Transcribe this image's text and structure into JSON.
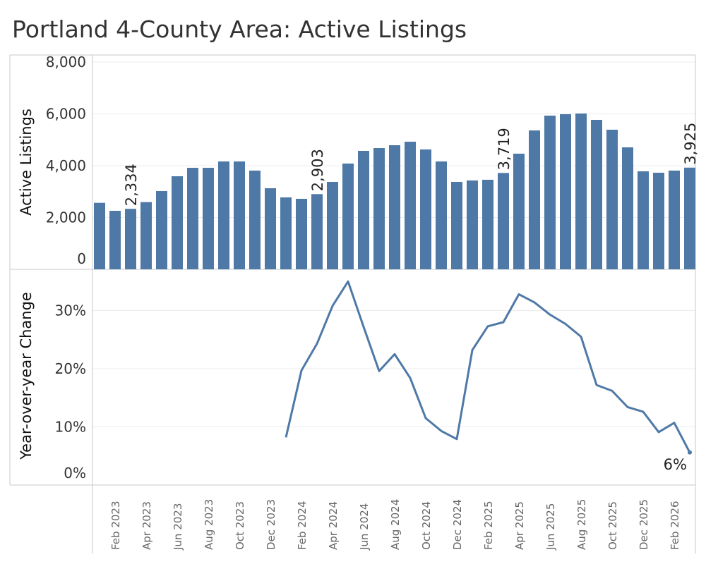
{
  "title": "Portland 4-County Area: Active Listings",
  "colors": {
    "bar": "#4e79a7",
    "line": "#4e79a7",
    "grid": "#ececec",
    "axis": "#c8c8c8"
  },
  "chart_data": [
    {
      "type": "bar",
      "title": "Active Listings",
      "ylabel": "Active Listings",
      "ylim": [
        0,
        8000
      ],
      "yticks": [
        0,
        2000,
        4000,
        6000,
        8000
      ],
      "ytick_labels": [
        "0",
        "2,000",
        "4,000",
        "6,000",
        "8,000"
      ],
      "grid": true,
      "categories": [
        "Jan 2023",
        "Feb 2023",
        "Mar 2023",
        "Apr 2023",
        "May 2023",
        "Jun 2023",
        "Jul 2023",
        "Aug 2023",
        "Sep 2023",
        "Oct 2023",
        "Nov 2023",
        "Dec 2023",
        "Jan 2024",
        "Feb 2024",
        "Mar 2024",
        "Apr 2024",
        "May 2024",
        "Jun 2024",
        "Jul 2024",
        "Aug 2024",
        "Sep 2024",
        "Oct 2024",
        "Nov 2024",
        "Dec 2024",
        "Jan 2025",
        "Feb 2025",
        "Mar 2025",
        "Apr 2025",
        "May 2025",
        "Jun 2025",
        "Jul 2025",
        "Aug 2025",
        "Sep 2025",
        "Oct 2025",
        "Nov 2025",
        "Dec 2025",
        "Jan 2026",
        "Feb 2026",
        "Mar 2026"
      ],
      "values": [
        2566,
        2258,
        2334,
        2594,
        3020,
        3592,
        3918,
        3918,
        4163,
        4163,
        3810,
        3129,
        2775,
        2721,
        2903,
        3374,
        4082,
        4572,
        4680,
        4790,
        4925,
        4626,
        4163,
        3374,
        3429,
        3456,
        3719,
        4463,
        5360,
        5932,
        5986,
        6014,
        5769,
        5388,
        4707,
        3782,
        3728,
        3810,
        3925
      ],
      "data_labels": [
        {
          "index": 2,
          "text": "2,334"
        },
        {
          "index": 14,
          "text": "2,903"
        },
        {
          "index": 26,
          "text": "3,719"
        },
        {
          "index": 38,
          "text": "3,925"
        }
      ]
    },
    {
      "type": "line",
      "title": "Year-over-year Change",
      "ylabel": "Year-over-year Change",
      "ylim": [
        0,
        36
      ],
      "yticks": [
        0,
        10,
        20,
        30
      ],
      "ytick_labels": [
        "0%",
        "10%",
        "20%",
        "30%"
      ],
      "grid": true,
      "values": [
        null,
        null,
        null,
        null,
        null,
        null,
        null,
        null,
        null,
        null,
        null,
        null,
        8.2,
        19.7,
        24.3,
        30.8,
        35.0,
        27.2,
        19.6,
        22.5,
        18.4,
        11.5,
        9.3,
        7.9,
        23.2,
        27.3,
        28.0,
        32.8,
        31.4,
        29.3,
        27.7,
        25.5,
        17.2,
        16.2,
        13.4,
        12.6,
        9.1,
        10.7,
        5.6
      ],
      "data_labels": [
        {
          "index": 38,
          "text": "6%"
        }
      ]
    }
  ],
  "x_axis": {
    "tick_labels": [
      {
        "index": 1,
        "text": "Feb 2023"
      },
      {
        "index": 3,
        "text": "Apr 2023"
      },
      {
        "index": 5,
        "text": "Jun 2023"
      },
      {
        "index": 7,
        "text": "Aug 2023"
      },
      {
        "index": 9,
        "text": "Oct 2023"
      },
      {
        "index": 11,
        "text": "Dec 2023"
      },
      {
        "index": 13,
        "text": "Feb 2024"
      },
      {
        "index": 15,
        "text": "Apr 2024"
      },
      {
        "index": 17,
        "text": "Jun 2024"
      },
      {
        "index": 19,
        "text": "Aug 2024"
      },
      {
        "index": 21,
        "text": "Oct 2024"
      },
      {
        "index": 23,
        "text": "Dec 2024"
      },
      {
        "index": 25,
        "text": "Feb 2025"
      },
      {
        "index": 27,
        "text": "Apr 2025"
      },
      {
        "index": 29,
        "text": "Jun 2025"
      },
      {
        "index": 31,
        "text": "Aug 2025"
      },
      {
        "index": 33,
        "text": "Oct 2025"
      },
      {
        "index": 35,
        "text": "Dec 2025"
      },
      {
        "index": 37,
        "text": "Feb 2026"
      }
    ]
  }
}
